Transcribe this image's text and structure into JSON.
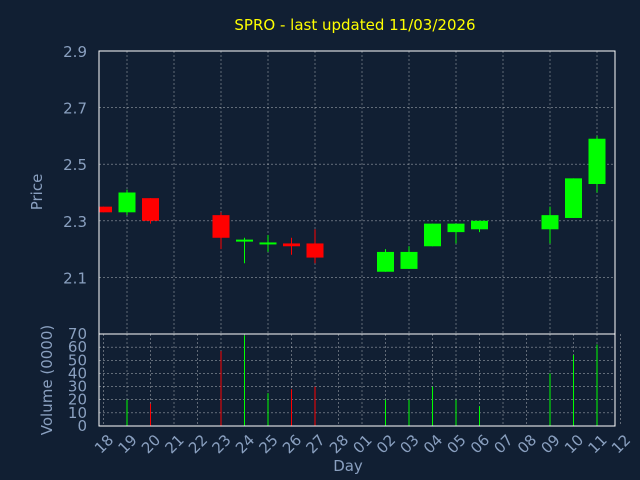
{
  "colors": {
    "background": "#111f33",
    "plot_border": "#ffffff",
    "grid": "#ffffff",
    "title": "#ffff00",
    "axis_text": "#8aa0c0",
    "up": "#00ff00",
    "down": "#ff0000"
  },
  "chart_data": [
    {
      "type": "candlestick",
      "title": "SPRO - last updated 11/03/2026",
      "ylabel": "Price",
      "ylim": [
        1.9,
        2.9
      ],
      "yticks": [
        "2.9",
        "2.7",
        "2.5",
        "2.3",
        "2.1"
      ],
      "xlabel": "Day",
      "xticks": [
        "18",
        "19",
        "20",
        "21",
        "22",
        "23",
        "24",
        "25",
        "26",
        "27",
        "28",
        "01",
        "02",
        "03",
        "04",
        "05",
        "06",
        "07",
        "08",
        "09",
        "10",
        "11",
        "12"
      ],
      "grid": true,
      "candles": [
        {
          "day": "18",
          "open": 2.35,
          "high": 2.35,
          "low": 2.33,
          "close": 2.33
        },
        {
          "day": "19",
          "open": 2.33,
          "high": 2.41,
          "low": 2.32,
          "close": 2.4
        },
        {
          "day": "20",
          "open": 2.38,
          "high": 2.38,
          "low": 2.29,
          "close": 2.3
        },
        {
          "day": "23",
          "open": 2.32,
          "high": 2.33,
          "low": 2.2,
          "close": 2.24
        },
        {
          "day": "24",
          "open": 2.23,
          "high": 2.24,
          "low": 2.15,
          "close": 2.23
        },
        {
          "day": "25",
          "open": 2.22,
          "high": 2.25,
          "low": 2.19,
          "close": 2.22
        },
        {
          "day": "26",
          "open": 2.22,
          "high": 2.24,
          "low": 2.18,
          "close": 2.21
        },
        {
          "day": "27",
          "open": 2.22,
          "high": 2.27,
          "low": 2.15,
          "close": 2.17
        },
        {
          "day": "02",
          "open": 2.12,
          "high": 2.2,
          "low": 2.12,
          "close": 2.19
        },
        {
          "day": "03",
          "open": 2.13,
          "high": 2.21,
          "low": 2.13,
          "close": 2.19
        },
        {
          "day": "04",
          "open": 2.21,
          "high": 2.29,
          "low": 2.21,
          "close": 2.29
        },
        {
          "day": "05",
          "open": 2.26,
          "high": 2.29,
          "low": 2.22,
          "close": 2.29
        },
        {
          "day": "06",
          "open": 2.27,
          "high": 2.3,
          "low": 2.26,
          "close": 2.3
        },
        {
          "day": "09",
          "open": 2.27,
          "high": 2.35,
          "low": 2.22,
          "close": 2.32
        },
        {
          "day": "10",
          "open": 2.31,
          "high": 2.45,
          "low": 2.31,
          "close": 2.45
        },
        {
          "day": "11",
          "open": 2.43,
          "high": 2.6,
          "low": 2.4,
          "close": 2.59
        }
      ]
    },
    {
      "type": "bar",
      "ylabel": "Volume (0000)",
      "ylim": [
        0,
        70
      ],
      "yticks": [
        "70",
        "60",
        "50",
        "40",
        "30",
        "20",
        "10",
        "0"
      ],
      "grid": true,
      "bars": [
        {
          "day": "19",
          "value": 20,
          "direction": "up"
        },
        {
          "day": "20",
          "value": 17,
          "direction": "down"
        },
        {
          "day": "23",
          "value": 57,
          "direction": "down"
        },
        {
          "day": "24",
          "value": 69,
          "direction": "up"
        },
        {
          "day": "25",
          "value": 25,
          "direction": "up"
        },
        {
          "day": "26",
          "value": 28,
          "direction": "down"
        },
        {
          "day": "27",
          "value": 30,
          "direction": "down"
        },
        {
          "day": "02",
          "value": 20,
          "direction": "up"
        },
        {
          "day": "03",
          "value": 20,
          "direction": "up"
        },
        {
          "day": "04",
          "value": 30,
          "direction": "up"
        },
        {
          "day": "05",
          "value": 20,
          "direction": "up"
        },
        {
          "day": "06",
          "value": 15,
          "direction": "up"
        },
        {
          "day": "09",
          "value": 40,
          "direction": "up"
        },
        {
          "day": "10",
          "value": 54,
          "direction": "up"
        },
        {
          "day": "11",
          "value": 62,
          "direction": "up"
        }
      ]
    }
  ]
}
